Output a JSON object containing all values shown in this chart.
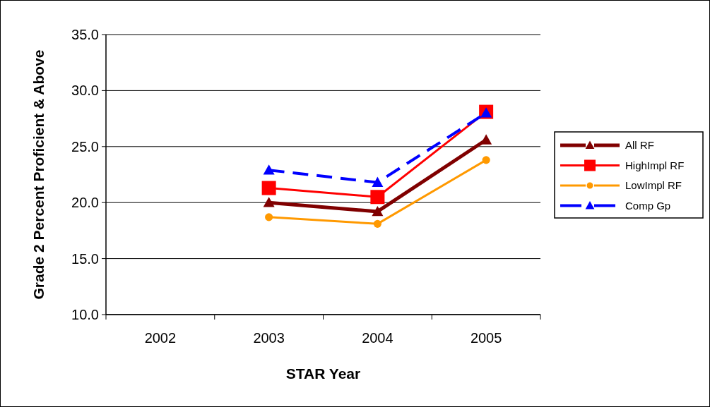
{
  "chart_data": {
    "type": "line",
    "xlabel": "STAR Year",
    "ylabel": "Grade 2 Percent Proficient & Above",
    "categories": [
      "2002",
      "2003",
      "2004",
      "2005"
    ],
    "series": [
      {
        "name": "All RF",
        "color": "#800000",
        "marker": "triangle",
        "line_style": "solid",
        "values": [
          null,
          20.0,
          19.2,
          25.6
        ]
      },
      {
        "name": "HighImpl RF",
        "color": "#ff0000",
        "marker": "square",
        "line_style": "solid",
        "values": [
          null,
          21.3,
          20.5,
          28.1
        ]
      },
      {
        "name": "LowImpl RF",
        "color": "#ff9900",
        "marker": "circle",
        "line_style": "solid",
        "values": [
          null,
          18.7,
          18.1,
          23.8
        ]
      },
      {
        "name": "Comp Gp",
        "color": "#0000ff",
        "marker": "triangle",
        "line_style": "dashed",
        "values": [
          null,
          22.9,
          21.8,
          28.0
        ]
      }
    ],
    "ylim": [
      10,
      35
    ],
    "yticks": [
      {
        "value": 10,
        "label": "10.0"
      },
      {
        "value": 15,
        "label": "15.0"
      },
      {
        "value": 20,
        "label": "20.0"
      },
      {
        "value": 25,
        "label": "25.0"
      },
      {
        "value": 30,
        "label": "30.0"
      },
      {
        "value": 35,
        "label": "35.0"
      }
    ],
    "grid": "y",
    "legend": "right"
  }
}
